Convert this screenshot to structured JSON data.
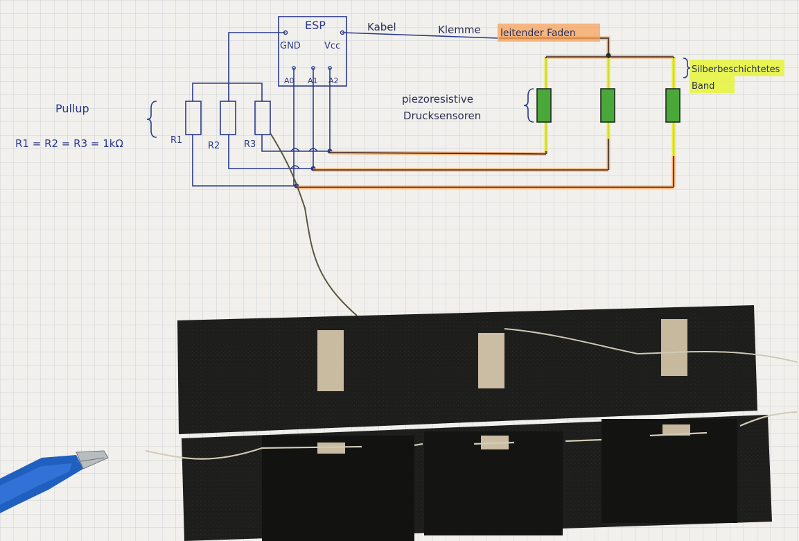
{
  "labels": {
    "esp": "ESP",
    "gnd": "GND",
    "vcc": "Vcc",
    "a0": "A0",
    "a1": "A1",
    "a2": "A2",
    "kabel": "Kabel",
    "klemme": "Klemme",
    "leitender_faden": "leitender Faden",
    "silber_line1": "Silberbeschichtetes",
    "silber_line2": "Band",
    "piezo_line1": "piezoresistive",
    "piezo_line2": "Drucksensoren",
    "pullup": "Pullup",
    "r_formula": "R1 = R2 = R3 = 1kΩ",
    "r1": "R1",
    "r2": "R2",
    "r3": "R3"
  },
  "colors": {
    "paper": "#f1f0ec",
    "grid": "#c9ccd0",
    "ink_blue": "#2b3a8a",
    "ink_dark": "#2a2f55",
    "orange_highlight": "#f7a35c",
    "yellow_highlight": "#e6f53a",
    "sensor_green": "#4aa83a",
    "felt_black": "#1c1c1a",
    "silver_band": "#c8bba0",
    "clip_blue": "#1f5fbf"
  },
  "icons": {
    "alligator_clip": "alligator-clip-icon"
  }
}
